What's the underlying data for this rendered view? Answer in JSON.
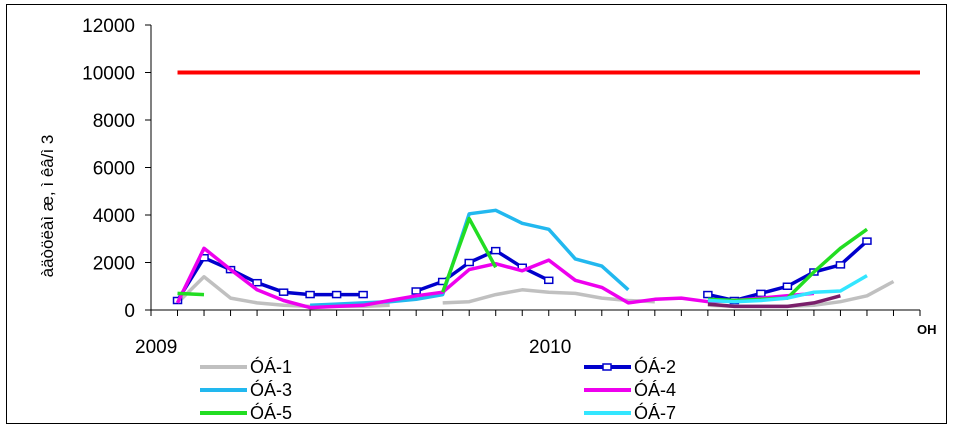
{
  "chart_data": {
    "type": "line",
    "title": "",
    "xlabel": "ОН",
    "ylabel": "àäòöëàì æ, ì êâ/ì 3",
    "ylim": [
      0,
      12000
    ],
    "yticks": [
      0,
      2000,
      4000,
      6000,
      8000,
      10000,
      12000
    ],
    "x_tick_labels": [
      "2009",
      "2010"
    ],
    "grid": false,
    "legend_position": "bottom",
    "limit_line": {
      "value": 10000,
      "color": "#ff0000"
    },
    "series": [
      {
        "name": "ÓÁ-1",
        "color": "#c0c0c0",
        "marker": false,
        "segments": [
          [
            [
              1,
              300
            ],
            [
              2,
              1400
            ],
            [
              3,
              500
            ],
            [
              4,
              300
            ],
            [
              5,
              200
            ],
            [
              6,
              150
            ],
            [
              7,
              150
            ],
            [
              8,
              150
            ],
            [
              9,
              200
            ]
          ],
          [
            [
              11,
              300
            ],
            [
              12,
              350
            ],
            [
              13,
              650
            ],
            [
              14,
              850
            ],
            [
              15,
              750
            ],
            [
              16,
              700
            ],
            [
              17,
              500
            ],
            [
              18,
              400
            ],
            [
              19,
              350
            ]
          ],
          [
            [
              21,
              200
            ],
            [
              22,
              150
            ],
            [
              23,
              150
            ],
            [
              24,
              150
            ],
            [
              25,
              200
            ],
            [
              26,
              350
            ],
            [
              27,
              600
            ],
            [
              28,
              1200
            ]
          ]
        ]
      },
      {
        "name": "ÓÁ-2",
        "color": "#0000cc",
        "marker": true,
        "segments": [
          [
            [
              1,
              400
            ],
            [
              2,
              2200
            ],
            [
              3,
              1700
            ],
            [
              4,
              1150
            ],
            [
              5,
              750
            ],
            [
              6,
              650
            ],
            [
              7,
              650
            ],
            [
              8,
              650
            ]
          ],
          [
            [
              10,
              800
            ],
            [
              11,
              1200
            ],
            [
              12,
              2000
            ],
            [
              13,
              2500
            ],
            [
              14,
              1800
            ],
            [
              15,
              1250
            ]
          ],
          [
            [
              21,
              650
            ],
            [
              22,
              400
            ],
            [
              23,
              700
            ],
            [
              24,
              1000
            ],
            [
              25,
              1600
            ],
            [
              26,
              1900
            ],
            [
              27,
              2900
            ]
          ]
        ]
      },
      {
        "name": "ÓÁ-3",
        "color": "#22b8ef",
        "marker": false,
        "segments": [
          [
            [
              6,
              200
            ],
            [
              7,
              250
            ],
            [
              8,
              300
            ],
            [
              9,
              350
            ],
            [
              10,
              450
            ],
            [
              11,
              650
            ],
            [
              12,
              4050
            ],
            [
              13,
              4200
            ],
            [
              14,
              3650
            ],
            [
              15,
              3400
            ],
            [
              16,
              2150
            ],
            [
              17,
              1850
            ],
            [
              18,
              850
            ]
          ]
        ]
      },
      {
        "name": "ÓÁ-4",
        "color": "#ee00ee",
        "marker": false,
        "segments": [
          [
            [
              1,
              300
            ],
            [
              2,
              2600
            ],
            [
              3,
              1700
            ],
            [
              4,
              850
            ],
            [
              5,
              400
            ],
            [
              6,
              100
            ],
            [
              7,
              150
            ],
            [
              8,
              200
            ],
            [
              9,
              400
            ],
            [
              10,
              600
            ],
            [
              11,
              750
            ],
            [
              12,
              1700
            ],
            [
              13,
              1950
            ],
            [
              14,
              1650
            ],
            [
              15,
              2100
            ],
            [
              16,
              1250
            ],
            [
              17,
              950
            ],
            [
              18,
              300
            ],
            [
              19,
              450
            ],
            [
              20,
              500
            ],
            [
              21,
              350
            ],
            [
              22,
              400
            ],
            [
              23,
              500
            ],
            [
              24,
              600
            ],
            [
              25,
              700
            ]
          ]
        ]
      },
      {
        "name": "ÓÁ-5",
        "color": "#22dd22",
        "marker": false,
        "segments": [
          [
            [
              1,
              700
            ],
            [
              2,
              650
            ]
          ],
          [
            [
              11,
              750
            ],
            [
              12,
              3850
            ],
            [
              13,
              1800
            ]
          ],
          [
            [
              21,
              450
            ],
            [
              22,
              400
            ],
            [
              23,
              450
            ],
            [
              24,
              500
            ],
            [
              25,
              1600
            ],
            [
              26,
              2600
            ],
            [
              27,
              3400
            ]
          ]
        ]
      },
      {
        "name": "ÓÁ-7",
        "color": "#33e6ff",
        "marker": false,
        "segments": [
          [
            [
              21,
              400
            ],
            [
              22,
              350
            ],
            [
              23,
              400
            ],
            [
              24,
              500
            ],
            [
              25,
              750
            ],
            [
              26,
              800
            ],
            [
              27,
              1450
            ]
          ]
        ]
      },
      {
        "name": "",
        "color": "#7a1f6a",
        "marker": false,
        "segments": [
          [
            [
              21,
              250
            ],
            [
              22,
              150
            ],
            [
              23,
              150
            ],
            [
              24,
              150
            ],
            [
              25,
              300
            ],
            [
              26,
              600
            ]
          ]
        ]
      }
    ]
  }
}
